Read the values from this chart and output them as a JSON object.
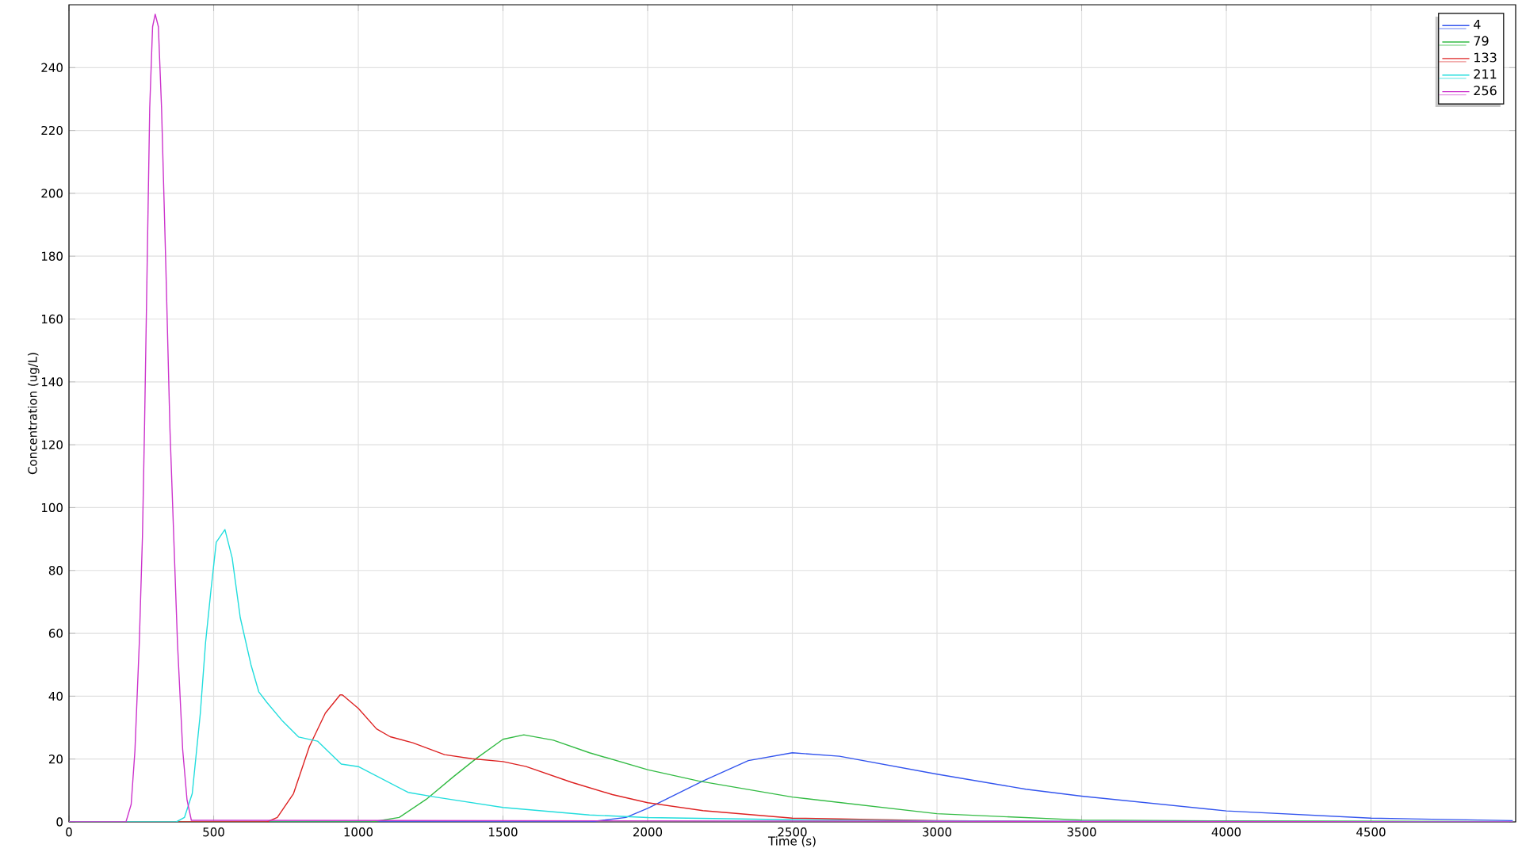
{
  "chart_data": {
    "type": "line",
    "xlabel": "Time (s)",
    "ylabel": "Concentration (ug/L)",
    "xlim": [
      0,
      5000
    ],
    "ylim": [
      0,
      260
    ],
    "xticks": [
      0,
      500,
      1000,
      1500,
      2000,
      2500,
      3000,
      3500,
      4000,
      4500
    ],
    "yticks": [
      0,
      20,
      40,
      60,
      80,
      100,
      120,
      140,
      160,
      180,
      200,
      220,
      240
    ],
    "grid": true,
    "legend": "top right",
    "marker": "none",
    "line_style": "solid",
    "series": [
      {
        "name": "4",
        "color": "#3355ee",
        "x": [
          0,
          1799,
          1925,
          2000,
          2191,
          2348,
          2500,
          2663,
          3000,
          3307,
          3500,
          4000,
          4500,
          4990
        ],
        "values": [
          0,
          0,
          1.4,
          4.3,
          13,
          19.5,
          22,
          20.9,
          15.2,
          10.4,
          8.2,
          3.5,
          1.2,
          0.4
        ]
      },
      {
        "name": "79",
        "color": "#33bb44",
        "x": [
          0,
          1047,
          1141,
          1235,
          1329,
          1408,
          1500,
          1572,
          1674,
          1799,
          2000,
          2176,
          2500,
          3000,
          3500,
          4000,
          4990
        ],
        "values": [
          0,
          0,
          1.4,
          7.2,
          14.4,
          20.2,
          26.3,
          27.7,
          26,
          22,
          16.6,
          13,
          7.9,
          2.6,
          0.6,
          0.3,
          0.1
        ]
      },
      {
        "name": "133",
        "color": "#dd2222",
        "x": [
          0,
          684,
          720,
          776,
          831,
          886,
          937,
          945,
          1000,
          1063,
          1110,
          1188,
          1298,
          1392,
          1500,
          1580,
          1737,
          1878,
          2000,
          2191,
          2500,
          3000,
          3500,
          4990
        ],
        "values": [
          0,
          0,
          1.4,
          9,
          24,
          34.6,
          40.4,
          40.4,
          36.1,
          29.6,
          27.1,
          25.2,
          21.4,
          20.1,
          19.2,
          17.6,
          12.6,
          8.7,
          6.1,
          3.6,
          1.2,
          0.4,
          0.1,
          0
        ]
      },
      {
        "name": "211",
        "color": "#22dddd",
        "x": [
          0,
          371,
          399,
          426,
          454,
          472,
          491,
          509,
          539,
          564,
          592,
          629,
          656,
          684,
          739,
          794,
          859,
          941,
          1000,
          1172,
          1266,
          1500,
          1799,
          2000,
          2500,
          3000,
          4990
        ],
        "values": [
          0,
          0,
          1.4,
          9,
          34.6,
          57,
          74,
          89,
          93,
          84,
          65,
          50,
          41.4,
          38,
          32,
          27,
          25.7,
          18.4,
          17.6,
          9.4,
          7.9,
          4.6,
          2.2,
          1.4,
          0.7,
          0.3,
          0
        ]
      },
      {
        "name": "256",
        "color": "#cc33cc",
        "x": [
          0,
          197,
          215,
          228,
          243,
          254,
          261,
          270,
          279,
          289,
          298,
          309,
          320,
          335,
          349,
          362,
          375,
          393,
          408,
          423,
          4990
        ],
        "values": [
          0,
          0,
          5.6,
          22.7,
          56.8,
          90.9,
          125,
          176,
          227,
          253,
          257,
          253,
          227,
          176,
          125,
          91,
          57,
          23,
          7,
          0.5,
          0
        ]
      }
    ]
  }
}
